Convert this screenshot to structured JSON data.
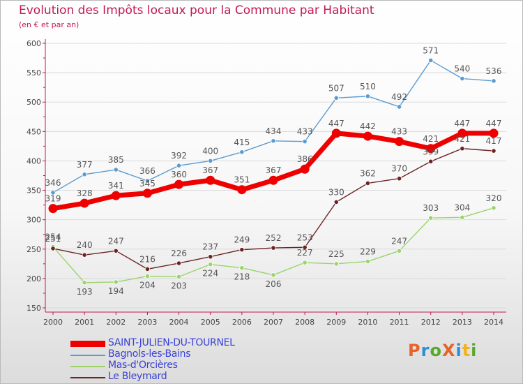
{
  "header": {
    "title": "Evolution des Impôts locaux pour la Commune par Habitant",
    "subtitle": "(en € et par an)"
  },
  "logo": {
    "text": "ProXiti",
    "colors": [
      "#e8622a",
      "#2a8fd6",
      "#5aa82b",
      "#e8622a",
      "#2a8fd6",
      "#f2b21b",
      "#5aa82b"
    ]
  },
  "colors": {
    "title": "#c4184e",
    "legend_text": "#3b41d6",
    "axis": "#c4184e"
  },
  "chart_data": {
    "type": "line",
    "title": "Evolution des Impôts locaux pour la Commune par Habitant",
    "subtitle": "(en € et par an)",
    "xlabel": "",
    "ylabel": "",
    "x": [
      "2000",
      "2001",
      "2002",
      "2003",
      "2004",
      "2005",
      "2006",
      "2007",
      "2008",
      "2009",
      "2010",
      "2011",
      "2012",
      "2013",
      "2014"
    ],
    "ylim": [
      150,
      600
    ],
    "yticks": [
      150,
      200,
      250,
      300,
      350,
      400,
      450,
      500,
      550,
      600
    ],
    "grid": "horizontal",
    "legend_position": "bottom-left",
    "series": [
      {
        "name": "SAINT-JULIEN-DU-TOURNEL",
        "color": "#ee0000",
        "values": [
          319,
          328,
          341,
          345,
          360,
          367,
          351,
          367,
          386,
          447,
          442,
          433,
          421,
          447,
          447
        ]
      },
      {
        "name": "Bagnols-les-Bains",
        "color": "#5b9bd0",
        "values": [
          346,
          377,
          385,
          366,
          392,
          400,
          415,
          434,
          433,
          507,
          510,
          492,
          571,
          540,
          536
        ]
      },
      {
        "name": "Mas-d'Orcières",
        "color": "#9ad46a",
        "values": [
          254,
          193,
          194,
          204,
          203,
          224,
          218,
          206,
          227,
          225,
          229,
          247,
          303,
          304,
          320
        ]
      },
      {
        "name": "Le Bleymard",
        "color": "#6b2424",
        "values": [
          251,
          240,
          247,
          216,
          226,
          237,
          249,
          252,
          253,
          330,
          362,
          370,
          399,
          421,
          417
        ]
      }
    ]
  }
}
